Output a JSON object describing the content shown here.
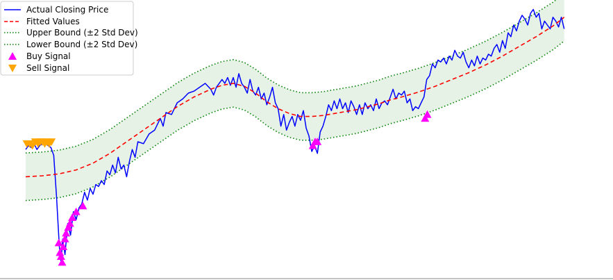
{
  "chart_data": {
    "type": "line",
    "title": "",
    "xlabel": "",
    "ylabel": "",
    "grid": false,
    "legend_placement": "top-left",
    "axes_visible": false,
    "series": [
      {
        "name": "Actual Closing Price",
        "style": "solid",
        "color": "#0000ff"
      },
      {
        "name": "Fitted Values",
        "style": "dashed",
        "color": "#ff0000"
      },
      {
        "name": "Upper Bound (±2 Std Dev)",
        "style": "dotted",
        "color": "#008000"
      },
      {
        "name": "Lower Bound (±2 Std Dev)",
        "style": "dotted",
        "color": "#008000"
      },
      {
        "name": "Buy Signal",
        "marker": "triangle-up",
        "color": "#ff00ff"
      },
      {
        "name": "Sell Signal",
        "marker": "triangle-down",
        "color": "#ffa500"
      }
    ],
    "x_domain": [
      0,
      100
    ],
    "y_domain": [
      -40,
      100
    ],
    "fitted": [
      [
        0,
        12
      ],
      [
        3,
        12.5
      ],
      [
        6,
        13.5
      ],
      [
        9,
        15.5
      ],
      [
        12,
        19
      ],
      [
        15,
        24
      ],
      [
        18,
        30
      ],
      [
        21,
        36
      ],
      [
        24,
        42
      ],
      [
        27,
        48
      ],
      [
        30,
        53
      ],
      [
        33,
        57
      ],
      [
        35,
        59
      ],
      [
        37,
        60
      ],
      [
        39,
        58.5
      ],
      [
        41,
        55
      ],
      [
        43,
        50.5
      ],
      [
        45,
        47
      ],
      [
        47,
        44.5
      ],
      [
        49,
        43
      ],
      [
        51,
        43
      ],
      [
        53,
        43.5
      ],
      [
        55,
        44.5
      ],
      [
        57,
        45.5
      ],
      [
        59,
        46.5
      ],
      [
        61,
        48
      ],
      [
        63,
        49.5
      ],
      [
        65,
        51.5
      ],
      [
        67,
        53
      ],
      [
        70,
        55.5
      ],
      [
        73,
        58.5
      ],
      [
        76,
        62
      ],
      [
        79,
        65.5
      ],
      [
        82,
        69.5
      ],
      [
        85,
        74
      ],
      [
        88,
        79
      ],
      [
        91,
        84
      ],
      [
        94,
        89.5
      ],
      [
        96,
        94
      ]
    ],
    "band_halfwidth": 12.2,
    "actual": [
      [
        0,
        26
      ],
      [
        0.5,
        28
      ],
      [
        1,
        27
      ],
      [
        1.5,
        29
      ],
      [
        2,
        26
      ],
      [
        2.5,
        28
      ],
      [
        3,
        29
      ],
      [
        3.5,
        30
      ],
      [
        4,
        28
      ],
      [
        4.5,
        27
      ],
      [
        5,
        23
      ],
      [
        5.5,
        2
      ],
      [
        6,
        -24
      ],
      [
        6.3,
        -32
      ],
      [
        6.6,
        -20
      ],
      [
        7,
        -28
      ],
      [
        7.5,
        -12
      ],
      [
        8,
        -18
      ],
      [
        8.5,
        -6
      ],
      [
        9,
        -10
      ],
      [
        9.5,
        -4
      ],
      [
        10,
        -2
      ],
      [
        10.5,
        4
      ],
      [
        11,
        0
      ],
      [
        11.5,
        6
      ],
      [
        12,
        3
      ],
      [
        12.5,
        8
      ],
      [
        13,
        7
      ],
      [
        13.5,
        10
      ],
      [
        14,
        8
      ],
      [
        14.5,
        15
      ],
      [
        15,
        13
      ],
      [
        15.5,
        18
      ],
      [
        16,
        14
      ],
      [
        16.5,
        22
      ],
      [
        17,
        16
      ],
      [
        17.5,
        18
      ],
      [
        18,
        12
      ],
      [
        18.5,
        20
      ],
      [
        19,
        26
      ],
      [
        19.5,
        22
      ],
      [
        20,
        30
      ],
      [
        21,
        29
      ],
      [
        22,
        34
      ],
      [
        23,
        36
      ],
      [
        24,
        42
      ],
      [
        24.5,
        38
      ],
      [
        25,
        45
      ],
      [
        26,
        44
      ],
      [
        27,
        50
      ],
      [
        28,
        52
      ],
      [
        29,
        55
      ],
      [
        30,
        56
      ],
      [
        31,
        58
      ],
      [
        32,
        60
      ],
      [
        33,
        57
      ],
      [
        33.5,
        54
      ],
      [
        34,
        58
      ],
      [
        35,
        62
      ],
      [
        35.5,
        60
      ],
      [
        36,
        63
      ],
      [
        36.5,
        59
      ],
      [
        37,
        63
      ],
      [
        37.5,
        58
      ],
      [
        38,
        65
      ],
      [
        38.5,
        60
      ],
      [
        39,
        58
      ],
      [
        39.5,
        55
      ],
      [
        40,
        62
      ],
      [
        40.5,
        56
      ],
      [
        41,
        54
      ],
      [
        41.5,
        58
      ],
      [
        42,
        52
      ],
      [
        42.5,
        55
      ],
      [
        43,
        49
      ],
      [
        43.5,
        53
      ],
      [
        44,
        58
      ],
      [
        44.5,
        50
      ],
      [
        45,
        47
      ],
      [
        45.5,
        38
      ],
      [
        46,
        44
      ],
      [
        46.5,
        36
      ],
      [
        47,
        40
      ],
      [
        47.5,
        43
      ],
      [
        48,
        38
      ],
      [
        48.5,
        44
      ],
      [
        49,
        41
      ],
      [
        49.5,
        46
      ],
      [
        50,
        37
      ],
      [
        50.5,
        33
      ],
      [
        51,
        25
      ],
      [
        51.5,
        28
      ],
      [
        52,
        24
      ],
      [
        52.5,
        35
      ],
      [
        53,
        38
      ],
      [
        53.5,
        43
      ],
      [
        54,
        49
      ],
      [
        54.5,
        46
      ],
      [
        55,
        51
      ],
      [
        55.5,
        47
      ],
      [
        56,
        52
      ],
      [
        56.5,
        47
      ],
      [
        57,
        50
      ],
      [
        57.5,
        45
      ],
      [
        58,
        51
      ],
      [
        58.5,
        48
      ],
      [
        59,
        44
      ],
      [
        59.5,
        49
      ],
      [
        60,
        44
      ],
      [
        60.5,
        50
      ],
      [
        61,
        47
      ],
      [
        61.5,
        49
      ],
      [
        62,
        46
      ],
      [
        62.5,
        52
      ],
      [
        63,
        47
      ],
      [
        63.5,
        50
      ],
      [
        64,
        51
      ],
      [
        64.5,
        49
      ],
      [
        65,
        53
      ],
      [
        65.5,
        57
      ],
      [
        66,
        52
      ],
      [
        66.5,
        55
      ],
      [
        67,
        54
      ],
      [
        67.5,
        56
      ],
      [
        68,
        50
      ],
      [
        68.5,
        52
      ],
      [
        69,
        46
      ],
      [
        69.5,
        48
      ],
      [
        70,
        47
      ],
      [
        70.5,
        50
      ],
      [
        71,
        53
      ],
      [
        71.5,
        62
      ],
      [
        72,
        64
      ],
      [
        72.5,
        70
      ],
      [
        73,
        68
      ],
      [
        73.5,
        72
      ],
      [
        74,
        71
      ],
      [
        74.5,
        73
      ],
      [
        75,
        70
      ],
      [
        75.5,
        74
      ],
      [
        76,
        72
      ],
      [
        76.5,
        77
      ],
      [
        77,
        74
      ],
      [
        77.5,
        73
      ],
      [
        78,
        76
      ],
      [
        78.5,
        71
      ],
      [
        79,
        68
      ],
      [
        79.5,
        72
      ],
      [
        80,
        69
      ],
      [
        80.5,
        74
      ],
      [
        81,
        70
      ],
      [
        81.5,
        73
      ],
      [
        82,
        72
      ],
      [
        82.5,
        75
      ],
      [
        83,
        74
      ],
      [
        83.5,
        78
      ],
      [
        84,
        80
      ],
      [
        84.5,
        76
      ],
      [
        85,
        82
      ],
      [
        85.5,
        78
      ],
      [
        86,
        86
      ],
      [
        86.5,
        84
      ],
      [
        87,
        90
      ],
      [
        87.5,
        87
      ],
      [
        88,
        92
      ],
      [
        88.5,
        95
      ],
      [
        89,
        93
      ],
      [
        89.5,
        90
      ],
      [
        90,
        96
      ],
      [
        90.5,
        98
      ],
      [
        91,
        94
      ],
      [
        91.5,
        96
      ],
      [
        92,
        88
      ],
      [
        92.5,
        92
      ],
      [
        93,
        90
      ],
      [
        93.5,
        88
      ],
      [
        94,
        94
      ],
      [
        94.5,
        92
      ],
      [
        95,
        89
      ],
      [
        95.5,
        94
      ],
      [
        96,
        88
      ]
    ],
    "buy_signals": [
      [
        5.9,
        -22
      ],
      [
        6.1,
        -27
      ],
      [
        6.3,
        -29
      ],
      [
        6.5,
        -32
      ],
      [
        6.7,
        -24
      ],
      [
        7,
        -20
      ],
      [
        7.2,
        -17
      ],
      [
        7.6,
        -14
      ],
      [
        7.9,
        -12
      ],
      [
        8.3,
        -9
      ],
      [
        9,
        -6
      ],
      [
        10.2,
        -3
      ],
      [
        51.2,
        28
      ],
      [
        51.6,
        30
      ],
      [
        52,
        30
      ],
      [
        71.2,
        42
      ],
      [
        71.6,
        44
      ]
    ],
    "sell_signals": [
      [
        0.2,
        29
      ],
      [
        0.7,
        29
      ],
      [
        1.2,
        28
      ],
      [
        1.7,
        30
      ],
      [
        2.2,
        29
      ],
      [
        2.6,
        30
      ],
      [
        3.0,
        30
      ],
      [
        3.4,
        29
      ],
      [
        3.8,
        30
      ],
      [
        4.2,
        29
      ],
      [
        4.6,
        30
      ]
    ]
  }
}
